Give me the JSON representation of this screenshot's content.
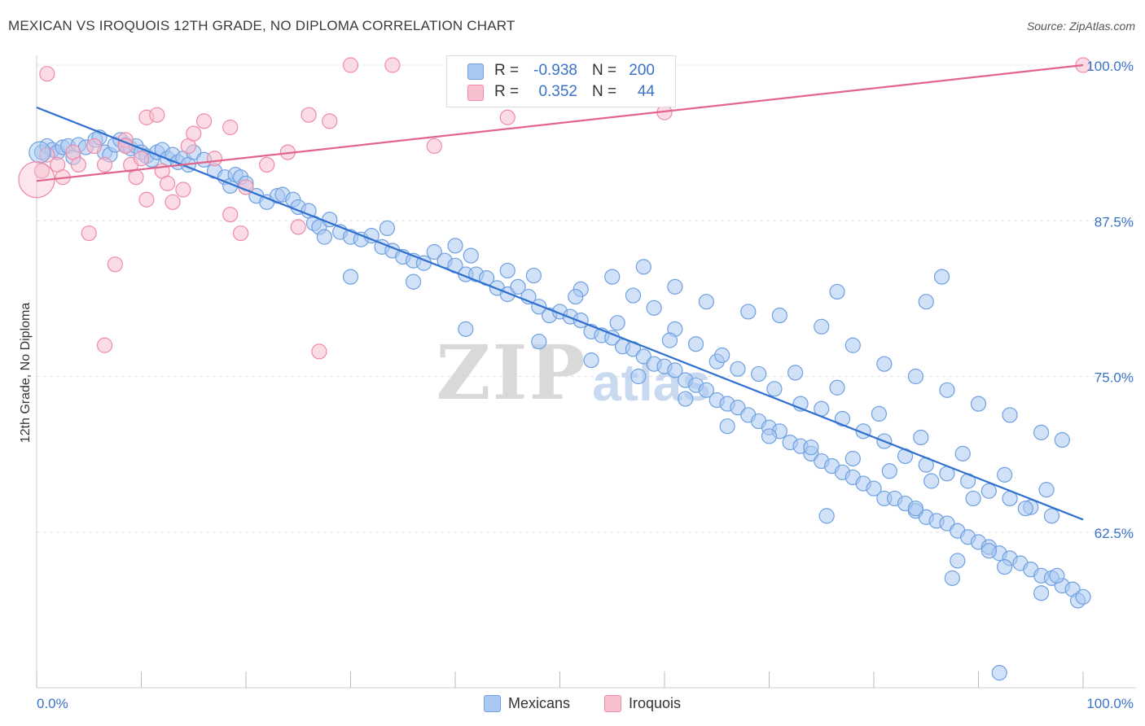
{
  "title": "MEXICAN VS IROQUOIS 12TH GRADE, NO DIPLOMA CORRELATION CHART",
  "source": "Source: ZipAtlas.com",
  "watermark": {
    "zip": "ZIP",
    "atlas": "atlas"
  },
  "legend_stats": [
    {
      "r_label": "R =",
      "r_value": "-0.938",
      "n_label": "N =",
      "n_value": "200",
      "color": "#a9c9f2",
      "border": "#6fa0e0"
    },
    {
      "r_label": "R =",
      "r_value": "0.352",
      "n_label": "N =",
      "n_value": "44",
      "color": "#f7c0cf",
      "border": "#ee8aa8"
    }
  ],
  "legend": [
    {
      "label": "Mexicans",
      "color": "#a9c9f2",
      "border": "#6fa0e0"
    },
    {
      "label": "Iroquois",
      "color": "#f7c0cf",
      "border": "#ee8aa8"
    }
  ],
  "chart_data": {
    "type": "scatter",
    "title": "MEXICAN VS IROQUOIS 12TH GRADE, NO DIPLOMA CORRELATION CHART",
    "xlabel": "",
    "ylabel": "12th Grade, No Diploma",
    "xlim": [
      0,
      100
    ],
    "ylim": [
      50,
      100
    ],
    "x_tick_labels": [
      "0.0%",
      "100.0%"
    ],
    "y_ticks": [
      62.5,
      75.0,
      87.5,
      100.0
    ],
    "y_tick_labels": [
      "62.5%",
      "75.0%",
      "87.5%",
      "100.0%"
    ],
    "grid": true,
    "legend_position": "bottom",
    "series": [
      {
        "name": "Mexicans",
        "color": "#6fa0e0",
        "fill": "#a9c9f2",
        "trend_color": "#2f6fd0",
        "trend": {
          "x": [
            0,
            100
          ],
          "y": [
            96.6,
            63.5
          ]
        },
        "points": [
          [
            0.5,
            93.0
          ],
          [
            1.0,
            93.5
          ],
          [
            1.5,
            93.2
          ],
          [
            2.0,
            93.0
          ],
          [
            2.5,
            93.4
          ],
          [
            3.0,
            93.5
          ],
          [
            3.5,
            92.6
          ],
          [
            4.0,
            93.6
          ],
          [
            4.7,
            93.4
          ],
          [
            5.6,
            94.0
          ],
          [
            6.0,
            94.2
          ],
          [
            6.5,
            93.0
          ],
          [
            7.0,
            92.8
          ],
          [
            7.5,
            93.6
          ],
          [
            8.0,
            94.0
          ],
          [
            8.5,
            93.6
          ],
          [
            9.0,
            93.3
          ],
          [
            9.5,
            93.5
          ],
          [
            10.0,
            93.0
          ],
          [
            10.5,
            92.7
          ],
          [
            11.0,
            92.4
          ],
          [
            11.5,
            93.0
          ],
          [
            12.0,
            93.2
          ],
          [
            12.5,
            92.5
          ],
          [
            13.0,
            92.8
          ],
          [
            13.5,
            92.2
          ],
          [
            14.0,
            92.5
          ],
          [
            14.5,
            92.0
          ],
          [
            15.0,
            93.0
          ],
          [
            16.0,
            92.4
          ],
          [
            17.0,
            91.5
          ],
          [
            18.0,
            91.0
          ],
          [
            18.5,
            90.3
          ],
          [
            19.0,
            91.2
          ],
          [
            19.5,
            91.0
          ],
          [
            20.0,
            90.5
          ],
          [
            21.0,
            89.5
          ],
          [
            22.0,
            89.0
          ],
          [
            23.0,
            89.5
          ],
          [
            23.5,
            89.6
          ],
          [
            24.5,
            89.2
          ],
          [
            25.0,
            88.6
          ],
          [
            26.0,
            88.3
          ],
          [
            26.5,
            87.3
          ],
          [
            27.0,
            87.0
          ],
          [
            28.0,
            87.6
          ],
          [
            29.0,
            86.6
          ],
          [
            30.0,
            86.2
          ],
          [
            31.0,
            86.0
          ],
          [
            32.0,
            86.3
          ],
          [
            33.0,
            85.4
          ],
          [
            34.0,
            85.1
          ],
          [
            35.0,
            84.6
          ],
          [
            36.0,
            84.3
          ],
          [
            37.0,
            84.1
          ],
          [
            38.0,
            85.0
          ],
          [
            39.0,
            84.3
          ],
          [
            40.0,
            83.9
          ],
          [
            41.0,
            83.2
          ],
          [
            42.0,
            83.2
          ],
          [
            43.0,
            82.9
          ],
          [
            44.0,
            82.1
          ],
          [
            45.0,
            81.6
          ],
          [
            46.0,
            82.2
          ],
          [
            47.0,
            81.4
          ],
          [
            48.0,
            80.6
          ],
          [
            49.0,
            79.9
          ],
          [
            50.0,
            80.2
          ],
          [
            51.0,
            79.8
          ],
          [
            52.0,
            79.5
          ],
          [
            53.0,
            78.6
          ],
          [
            54.0,
            78.3
          ],
          [
            55.0,
            78.1
          ],
          [
            56.0,
            77.4
          ],
          [
            57.0,
            77.2
          ],
          [
            58.0,
            76.6
          ],
          [
            59.0,
            76.0
          ],
          [
            60.0,
            75.8
          ],
          [
            61.0,
            75.5
          ],
          [
            62.0,
            74.7
          ],
          [
            63.0,
            74.3
          ],
          [
            64.0,
            73.9
          ],
          [
            65.0,
            73.1
          ],
          [
            66.0,
            72.8
          ],
          [
            67.0,
            72.5
          ],
          [
            68.0,
            71.9
          ],
          [
            69.0,
            71.4
          ],
          [
            70.0,
            70.9
          ],
          [
            71.0,
            70.6
          ],
          [
            72.0,
            69.7
          ],
          [
            73.0,
            69.4
          ],
          [
            74.0,
            68.8
          ],
          [
            75.0,
            68.2
          ],
          [
            76.0,
            67.8
          ],
          [
            77.0,
            67.3
          ],
          [
            78.0,
            66.9
          ],
          [
            79.0,
            66.4
          ],
          [
            80.0,
            66.0
          ],
          [
            81.0,
            65.2
          ],
          [
            82.0,
            65.2
          ],
          [
            83.0,
            64.8
          ],
          [
            84.0,
            64.2
          ],
          [
            85.0,
            63.7
          ],
          [
            86.0,
            63.4
          ],
          [
            87.0,
            63.2
          ],
          [
            88.0,
            62.6
          ],
          [
            89.0,
            62.1
          ],
          [
            90.0,
            61.7
          ],
          [
            91.0,
            61.3
          ],
          [
            92.0,
            60.8
          ],
          [
            93.0,
            60.4
          ],
          [
            94.0,
            60.0
          ],
          [
            95.0,
            59.5
          ],
          [
            96.0,
            59.0
          ],
          [
            97.0,
            58.8
          ],
          [
            98.0,
            58.2
          ],
          [
            99.0,
            57.9
          ],
          [
            99.5,
            57.0
          ],
          [
            40.0,
            85.5
          ],
          [
            45.0,
            83.5
          ],
          [
            52.0,
            82.0
          ],
          [
            57.0,
            81.5
          ],
          [
            59.0,
            80.5
          ],
          [
            61.0,
            78.8
          ],
          [
            63.0,
            77.6
          ],
          [
            65.0,
            76.2
          ],
          [
            67.0,
            75.6
          ],
          [
            69.0,
            75.2
          ],
          [
            70.5,
            74.0
          ],
          [
            73.0,
            72.8
          ],
          [
            75.0,
            72.4
          ],
          [
            77.0,
            71.6
          ],
          [
            79.0,
            70.6
          ],
          [
            81.0,
            69.8
          ],
          [
            83.0,
            68.6
          ],
          [
            85.0,
            67.9
          ],
          [
            87.0,
            67.2
          ],
          [
            89.0,
            66.6
          ],
          [
            91.0,
            65.8
          ],
          [
            93.0,
            65.2
          ],
          [
            95.0,
            64.5
          ],
          [
            97.0,
            63.8
          ],
          [
            55.0,
            83.0
          ],
          [
            58.0,
            83.8
          ],
          [
            61.0,
            82.2
          ],
          [
            64.0,
            81.0
          ],
          [
            68.0,
            80.2
          ],
          [
            71.0,
            79.9
          ],
          [
            75.0,
            79.0
          ],
          [
            78.0,
            77.5
          ],
          [
            81.0,
            76.0
          ],
          [
            84.0,
            75.0
          ],
          [
            87.0,
            73.9
          ],
          [
            90.0,
            72.8
          ],
          [
            93.0,
            71.9
          ],
          [
            96.0,
            70.5
          ],
          [
            98.0,
            69.9
          ],
          [
            36.0,
            82.6
          ],
          [
            30.0,
            83.0
          ],
          [
            48.0,
            77.8
          ],
          [
            53.0,
            76.3
          ],
          [
            57.5,
            75.0
          ],
          [
            62.0,
            73.2
          ],
          [
            66.0,
            71.0
          ],
          [
            70.0,
            70.2
          ],
          [
            74.0,
            69.3
          ],
          [
            78.0,
            68.4
          ],
          [
            81.5,
            67.4
          ],
          [
            85.5,
            66.6
          ],
          [
            89.5,
            65.2
          ],
          [
            94.5,
            64.4
          ],
          [
            27.5,
            86.2
          ],
          [
            33.5,
            86.9
          ],
          [
            41.5,
            84.7
          ],
          [
            47.5,
            83.1
          ],
          [
            51.5,
            81.4
          ],
          [
            55.5,
            79.3
          ],
          [
            60.5,
            77.9
          ],
          [
            65.5,
            76.7
          ],
          [
            72.5,
            75.3
          ],
          [
            76.5,
            74.1
          ],
          [
            80.5,
            72.0
          ],
          [
            84.5,
            70.1
          ],
          [
            88.5,
            68.8
          ],
          [
            92.5,
            67.1
          ],
          [
            96.5,
            65.9
          ],
          [
            41.0,
            78.8
          ],
          [
            76.5,
            81.8
          ],
          [
            85.0,
            81.0
          ],
          [
            86.5,
            83.0
          ],
          [
            84.0,
            64.4
          ],
          [
            91.0,
            61.0
          ],
          [
            75.5,
            63.8
          ],
          [
            88.0,
            60.2
          ],
          [
            92.5,
            59.7
          ],
          [
            97.5,
            59.0
          ],
          [
            87.5,
            58.8
          ],
          [
            96.0,
            57.6
          ],
          [
            100.0,
            57.3
          ],
          [
            92.0,
            51.2
          ]
        ]
      },
      {
        "name": "Iroquois",
        "color": "#ee8aa8",
        "fill": "#f7c0cf",
        "trend_color": "#e2648c",
        "trend": {
          "x": [
            0,
            100
          ],
          "y": [
            90.7,
            100.0
          ]
        },
        "points": [
          [
            0.5,
            91.5
          ],
          [
            1.0,
            92.8
          ],
          [
            2.0,
            92.0
          ],
          [
            2.5,
            91.0
          ],
          [
            3.5,
            93.0
          ],
          [
            4.0,
            92.0
          ],
          [
            5.0,
            86.5
          ],
          [
            5.5,
            93.5
          ],
          [
            6.5,
            92.0
          ],
          [
            7.5,
            84.0
          ],
          [
            6.5,
            77.5
          ],
          [
            8.5,
            94.0
          ],
          [
            8.5,
            93.5
          ],
          [
            9.0,
            92.0
          ],
          [
            9.5,
            91.0
          ],
          [
            10.0,
            92.5
          ],
          [
            10.5,
            95.8
          ],
          [
            10.5,
            89.2
          ],
          [
            11.5,
            96.0
          ],
          [
            12.0,
            91.5
          ],
          [
            12.5,
            90.5
          ],
          [
            13.0,
            89.0
          ],
          [
            14.0,
            90.0
          ],
          [
            14.5,
            93.5
          ],
          [
            15.0,
            94.5
          ],
          [
            16.0,
            95.5
          ],
          [
            17.0,
            92.5
          ],
          [
            18.5,
            95.0
          ],
          [
            18.5,
            88.0
          ],
          [
            19.5,
            86.5
          ],
          [
            20.0,
            90.2
          ],
          [
            22.0,
            92.0
          ],
          [
            24.0,
            93.0
          ],
          [
            25.0,
            87.0
          ],
          [
            26.0,
            96.0
          ],
          [
            27.0,
            77.0
          ],
          [
            28.0,
            95.5
          ],
          [
            30.0,
            100.0
          ],
          [
            34.0,
            100.0
          ],
          [
            38.0,
            93.5
          ],
          [
            45.0,
            95.8
          ],
          [
            60.0,
            96.2
          ],
          [
            1.0,
            99.3
          ],
          [
            100.0,
            100.0
          ]
        ]
      }
    ]
  }
}
